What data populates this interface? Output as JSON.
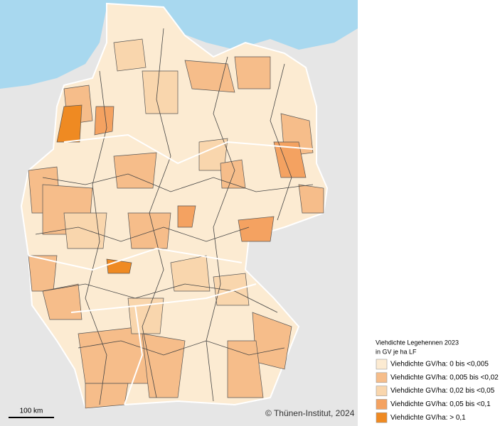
{
  "legend": {
    "title": "Viehdichte Legehennen 2023",
    "subtitle": "in GV je ha LF",
    "items": [
      {
        "label": "Viehdichte GV/ha: 0 bis <0,005",
        "color": "#fcebd2"
      },
      {
        "label": "Viehdichte GV/ha: 0,005 bis <0,02",
        "color": "#f6bd8a"
      },
      {
        "label": "Viehdichte GV/ha: 0,02 bis <0,05",
        "color": "#f9d6ad"
      },
      {
        "label": "Viehdichte GV/ha: 0,05 bis <0,1",
        "color": "#f4a261"
      },
      {
        "label": "Viehdichte GV/ha: > 0,1",
        "color": "#ef8a22"
      }
    ]
  },
  "scale_bar": "100 km",
  "copyright": "© Thünen-Institut, 2024"
}
